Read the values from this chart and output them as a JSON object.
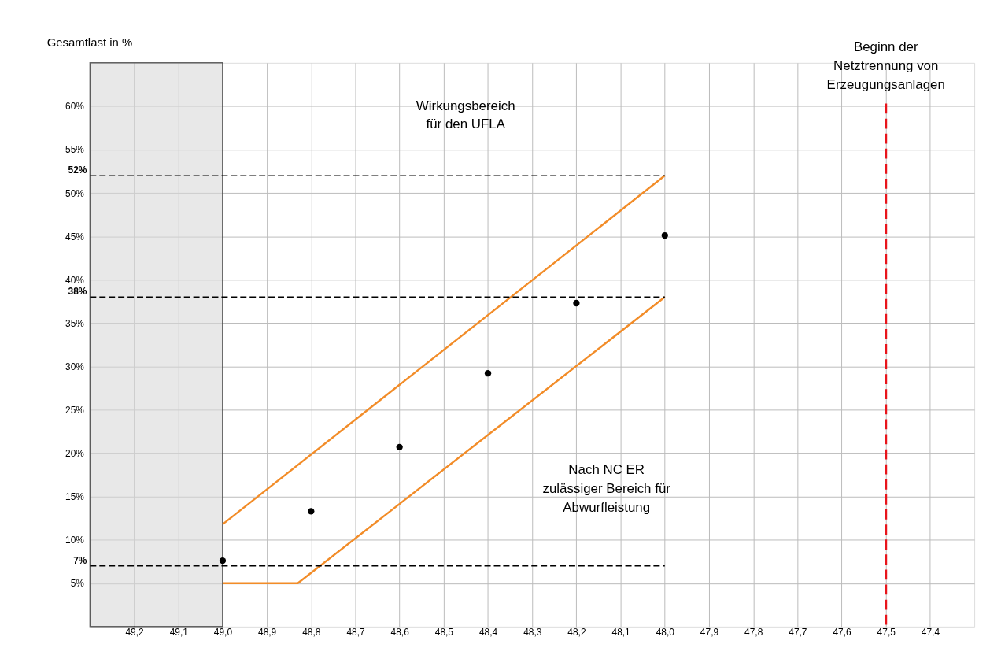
{
  "chart_data": {
    "type": "line",
    "ylabel": "Gesamtlast in %",
    "xlim": [
      49.3,
      47.3
    ],
    "ylim": [
      0,
      65
    ],
    "xticks": [
      {
        "value": 49.2,
        "label": "49,2"
      },
      {
        "value": 49.1,
        "label": "49,1"
      },
      {
        "value": 49.0,
        "label": "49,0"
      },
      {
        "value": 48.9,
        "label": "48,9"
      },
      {
        "value": 48.8,
        "label": "48,8"
      },
      {
        "value": 48.7,
        "label": "48,7"
      },
      {
        "value": 48.6,
        "label": "48,6"
      },
      {
        "value": 48.5,
        "label": "48,5"
      },
      {
        "value": 48.4,
        "label": "48,4"
      },
      {
        "value": 48.3,
        "label": "48,3"
      },
      {
        "value": 48.2,
        "label": "48,2"
      },
      {
        "value": 48.1,
        "label": "48,1"
      },
      {
        "value": 48.0,
        "label": "48,0"
      },
      {
        "value": 47.9,
        "label": "47,9"
      },
      {
        "value": 47.8,
        "label": "47,8"
      },
      {
        "value": 47.7,
        "label": "47,7"
      },
      {
        "value": 47.6,
        "label": "47,6"
      },
      {
        "value": 47.5,
        "label": "47,5"
      },
      {
        "value": 47.4,
        "label": "47,4"
      }
    ],
    "yticks": [
      {
        "value": 5,
        "label": "5%"
      },
      {
        "value": 10,
        "label": "10%"
      },
      {
        "value": 15,
        "label": "15%"
      },
      {
        "value": 20,
        "label": "20%"
      },
      {
        "value": 25,
        "label": "25%"
      },
      {
        "value": 30,
        "label": "30%"
      },
      {
        "value": 35,
        "label": "35%"
      },
      {
        "value": 40,
        "label": "40%"
      },
      {
        "value": 45,
        "label": "45%"
      },
      {
        "value": 50,
        "label": "50%"
      },
      {
        "value": 55,
        "label": "55%"
      },
      {
        "value": 60,
        "label": "60%"
      }
    ],
    "grid": true,
    "series": [
      {
        "color": "#f28c28",
        "x": [
          49.0,
          48.0
        ],
        "values": [
          11.8,
          52
        ],
        "marker": "none"
      },
      {
        "color": "#f28c28",
        "x": [
          49.0,
          48.83,
          48.0
        ],
        "values": [
          5,
          5,
          38
        ],
        "marker": "none"
      },
      {
        "type": "scatter",
        "color": "#000000",
        "x": [
          49.0,
          48.8,
          48.6,
          48.4,
          48.2,
          48.0
        ],
        "values": [
          7.6,
          13.3,
          20.7,
          29.2,
          37.3,
          45.1
        ],
        "marker": "circle"
      }
    ],
    "ref_lines": [
      {
        "axis": "y",
        "value": 52,
        "label": "52%",
        "color": "#000000",
        "line_style": "dashed"
      },
      {
        "axis": "y",
        "value": 38,
        "label": "38%",
        "color": "#000000",
        "line_style": "dashed"
      },
      {
        "axis": "y",
        "value": 7,
        "label": "7%",
        "color": "#000000",
        "line_style": "dashed"
      },
      {
        "axis": "x",
        "value": 47.5,
        "label": "Beginn der\nNetztrennung von\nErzeugungsanlagen",
        "color": "#e8141b",
        "line_style": "dashed"
      }
    ],
    "bands": [
      {
        "axis": "x",
        "from": 49.3,
        "to": 49.0,
        "color": "#d9d9d9"
      }
    ],
    "annotations": [
      "Wirkungsbereich\nfür den UFLA",
      "Nach NC ER\nzulässiger Bereich für\nAbwurfleistung"
    ]
  }
}
